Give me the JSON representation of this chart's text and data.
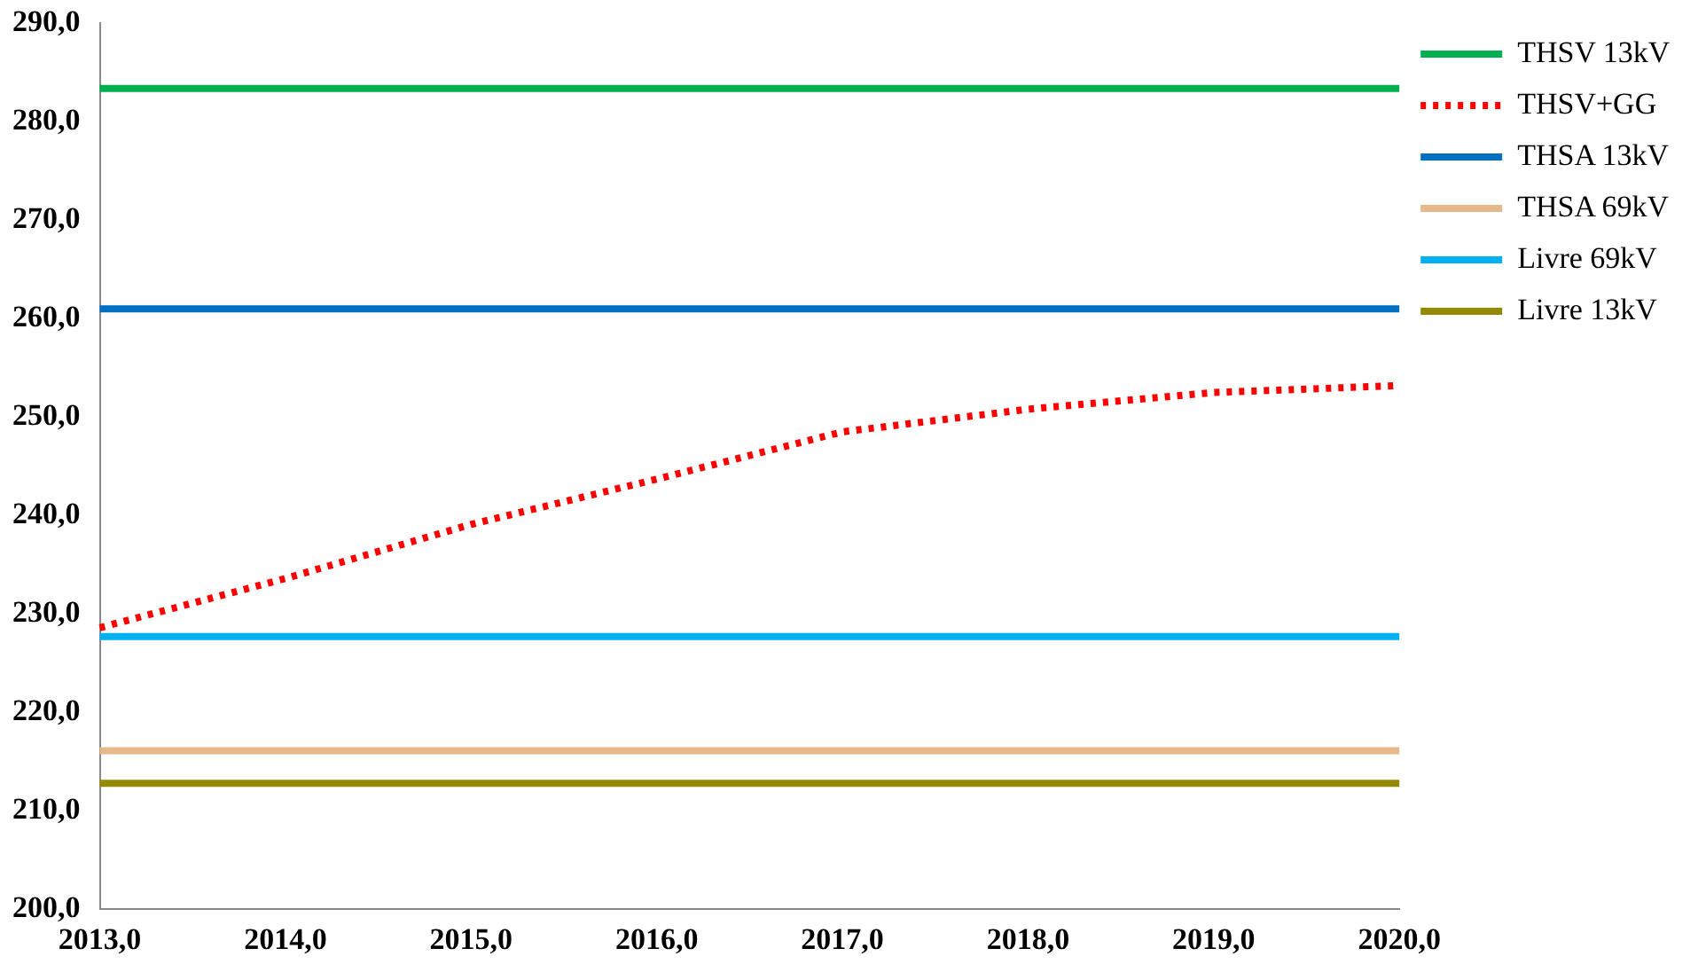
{
  "chart_data": {
    "type": "line",
    "categories": [
      "2013,0",
      "2014,0",
      "2015,0",
      "2016,0",
      "2017,0",
      "2018,0",
      "2019,0",
      "2020,0"
    ],
    "series": [
      {
        "name": "THSV 13kV",
        "color": "#00b050",
        "values": [
          283.4,
          283.4,
          283.4,
          283.4,
          283.4,
          283.4,
          283.4,
          283.4
        ]
      },
      {
        "name": "THSV+GG",
        "color": "#ff0000",
        "line_style": "dotted",
        "values": [
          228.6,
          233.6,
          239.1,
          243.7,
          248.5,
          250.8,
          252.5,
          253.2
        ]
      },
      {
        "name": "THSA 13kV",
        "color": "#0070c0",
        "values": [
          261.0,
          261.0,
          261.0,
          261.0,
          261.0,
          261.0,
          261.0,
          261.0
        ]
      },
      {
        "name": "THSA 69kV",
        "color": "#e6b88a",
        "values": [
          216.1,
          216.1,
          216.1,
          216.1,
          216.1,
          216.1,
          216.1,
          216.1
        ]
      },
      {
        "name": "Livre 69kV",
        "color": "#00b0f0",
        "values": [
          227.7,
          227.7,
          227.7,
          227.7,
          227.7,
          227.7,
          227.7,
          227.7
        ]
      },
      {
        "name": "Livre 13kV",
        "color": "#948a00",
        "values": [
          212.8,
          212.8,
          212.8,
          212.8,
          212.8,
          212.8,
          212.8,
          212.8
        ]
      }
    ],
    "ylim": [
      200,
      290
    ],
    "yticks": [
      {
        "value": 200,
        "label": "200,0"
      },
      {
        "value": 210,
        "label": "210,0"
      },
      {
        "value": 220,
        "label": "220,0"
      },
      {
        "value": 230,
        "label": "230,0"
      },
      {
        "value": 240,
        "label": "240,0"
      },
      {
        "value": 250,
        "label": "250,0"
      },
      {
        "value": 260,
        "label": "260,0"
      },
      {
        "value": 270,
        "label": "270,0"
      },
      {
        "value": 280,
        "label": "280,0"
      },
      {
        "value": 290,
        "label": "290,0"
      }
    ],
    "grid": false,
    "legend": "right",
    "marker": "none",
    "line_style": "solid"
  }
}
